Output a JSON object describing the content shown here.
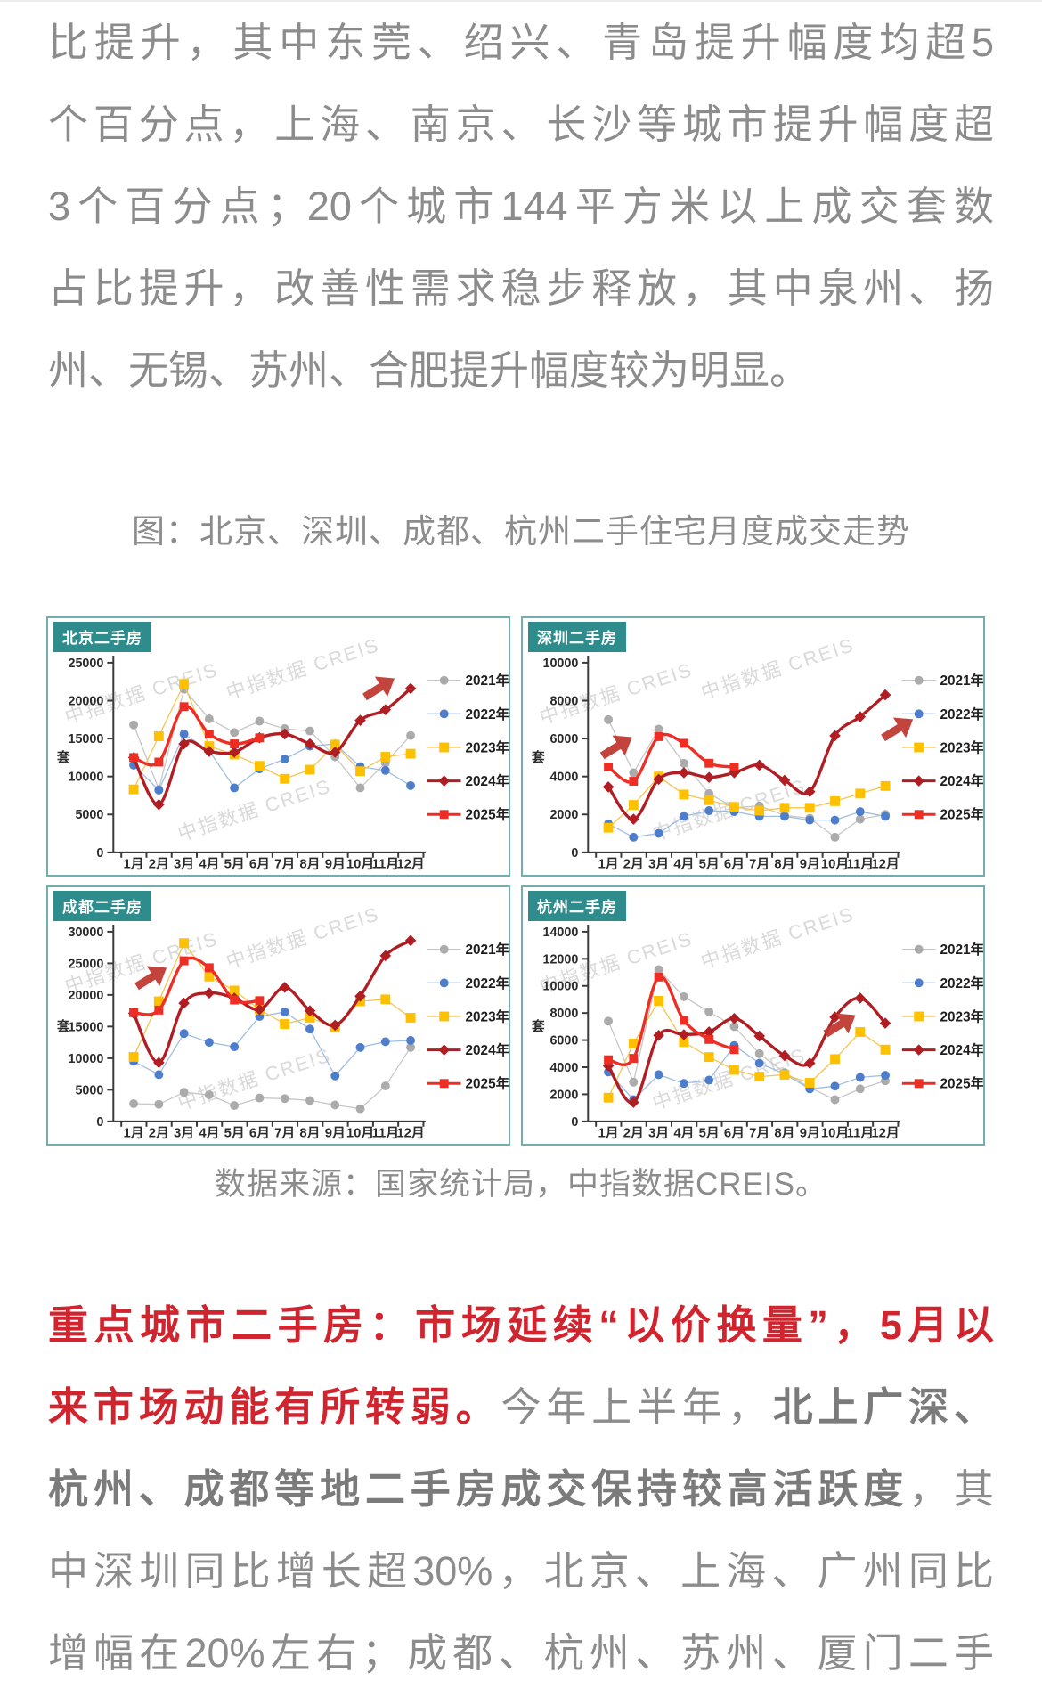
{
  "article": {
    "top_lines": [
      "比提升，其中东莞、绍兴、青岛提升幅度均超5",
      "个百分点，上海、南京、长沙等城市提升幅度超",
      "3个百分点；20个城市144平方米以上成交套数",
      "占比提升，改善性需求稳步释放，其中泉州、扬",
      "州、无锡、苏州、合肥提升幅度较为明显。"
    ],
    "bottom": {
      "l1": "重点城市二手房：市场延续“以价换量”，5月以",
      "l2a": "来市场动能有所转弱。",
      "l2b": "今年上半年，",
      "l2c": "北上广深、",
      "l3a": "杭州、成都等地二手房成交保持较高活跃度",
      "l3b": "，其",
      "l4": "中深圳同比增长超30%，北京、上海、广州同比",
      "l5": "增幅在20%左右；成都、杭州、苏州、厦门二手"
    }
  },
  "figure": {
    "caption": "图：北京、深圳、成都、杭州二手住宅月度成交走势",
    "source": "数据来源：国家统计局，中指数据CREIS。",
    "watermark": "中指数据 CREIS",
    "unit": "套"
  },
  "colors": {
    "body_gray": "#8c8c8c",
    "heading_red": "#d0242f",
    "panel_border": "#6fafaf",
    "panel_title_bg": "#2e8c8c",
    "arrow": "#bf3a33",
    "series_2021": "#ababab",
    "series_2022": "#4e7ecb",
    "series_2023": "#ffc000",
    "series_2024": "#b01e23",
    "series_2025": "#ee2e24"
  },
  "chart_styles": {
    "2021年": {
      "line": "#c7c7c7",
      "marker": "#ababab",
      "shape": "circle",
      "w": 1.3,
      "smooth": false
    },
    "2022年": {
      "line": "#9fbde2",
      "marker": "#4e7ecb",
      "shape": "circle",
      "w": 1.3,
      "smooth": false
    },
    "2023年": {
      "line": "#f6c44f",
      "marker": "#ffc000",
      "shape": "square",
      "w": 1.3,
      "smooth": false
    },
    "2024年": {
      "line": "#b01e23",
      "marker": "#b01e23",
      "shape": "diamond",
      "w": 3.4,
      "smooth": true
    },
    "2025年": {
      "line": "#ee2e24",
      "marker": "#ee2e24",
      "shape": "square",
      "w": 3.4,
      "smooth": true
    }
  },
  "chart_data": [
    {
      "type": "line",
      "title": "北京二手房",
      "ylabel": "套",
      "categories": [
        "1月",
        "2月",
        "3月",
        "4月",
        "5月",
        "6月",
        "7月",
        "8月",
        "9月",
        "10月",
        "11月",
        "12月"
      ],
      "ylim": [
        0,
        25000
      ],
      "ytick": 5000,
      "legend_position": "right",
      "grid": false,
      "series": [
        {
          "name": "2021年",
          "values": [
            16800,
            8300,
            21500,
            17600,
            15800,
            17300,
            16300,
            16000,
            12600,
            8500,
            11800,
            15400
          ]
        },
        {
          "name": "2022年",
          "values": [
            11500,
            8200,
            15600,
            13400,
            8500,
            11000,
            12300,
            14000,
            14300,
            11300,
            10800,
            8800
          ]
        },
        {
          "name": "2023年",
          "values": [
            8300,
            15300,
            22200,
            14000,
            12900,
            11400,
            9700,
            10900,
            14200,
            10700,
            12600,
            13000
          ]
        },
        {
          "name": "2024年",
          "values": [
            12500,
            6300,
            14300,
            13300,
            13200,
            15100,
            15600,
            14300,
            13200,
            17400,
            18800,
            21600
          ]
        },
        {
          "name": "2025年",
          "values": [
            12500,
            11900,
            19200,
            15600,
            14300,
            15100,
            null,
            null,
            null,
            null,
            null,
            null
          ]
        }
      ],
      "arrows": [
        {
          "x": 0.72,
          "y": 0.27,
          "rot": -32
        }
      ]
    },
    {
      "type": "line",
      "title": "深圳二手房",
      "ylabel": "套",
      "categories": [
        "1月",
        "2月",
        "3月",
        "4月",
        "5月",
        "6月",
        "7月",
        "8月",
        "9月",
        "10月",
        "11月",
        "12月"
      ],
      "ylim": [
        0,
        10000
      ],
      "ytick": 2000,
      "legend_position": "right",
      "grid": false,
      "series": [
        {
          "name": "2021年",
          "values": [
            7000,
            4200,
            6500,
            4700,
            3100,
            2350,
            2450,
            1950,
            1800,
            800,
            1750,
            2000
          ]
        },
        {
          "name": "2022年",
          "values": [
            1500,
            800,
            1000,
            1900,
            2200,
            2150,
            1900,
            1900,
            1700,
            1700,
            2150,
            1900
          ]
        },
        {
          "name": "2023年",
          "values": [
            1300,
            2500,
            4000,
            3050,
            2750,
            2400,
            2200,
            2350,
            2350,
            2700,
            3100,
            3500
          ]
        },
        {
          "name": "2024年",
          "values": [
            3450,
            1750,
            3850,
            4200,
            3950,
            4200,
            4600,
            3800,
            3200,
            6150,
            7150,
            8300
          ]
        },
        {
          "name": "2025年",
          "values": [
            4500,
            3750,
            6100,
            5750,
            4700,
            4500,
            null,
            null,
            null,
            null,
            null,
            null
          ]
        }
      ],
      "arrows": [
        {
          "x": 0.205,
          "y": 0.5,
          "rot": -32
        },
        {
          "x": 0.815,
          "y": 0.43,
          "rot": -32
        }
      ]
    },
    {
      "type": "line",
      "title": "成都二手房",
      "ylabel": "套",
      "categories": [
        "1月",
        "2月",
        "3月",
        "4月",
        "5月",
        "6月",
        "7月",
        "8月",
        "9月",
        "10月",
        "11月",
        "12月"
      ],
      "ylim": [
        0,
        30000
      ],
      "ytick": 5000,
      "legend_position": "right",
      "grid": false,
      "series": [
        {
          "name": "2021年",
          "values": [
            2800,
            2700,
            4600,
            4200,
            2500,
            3700,
            3600,
            3300,
            2600,
            2000,
            5600,
            11700
          ]
        },
        {
          "name": "2022年",
          "values": [
            9500,
            7400,
            13900,
            12500,
            11800,
            16600,
            17300,
            14600,
            7200,
            11700,
            12600,
            12800
          ]
        },
        {
          "name": "2023年",
          "values": [
            10200,
            19000,
            28200,
            22900,
            20700,
            17700,
            15400,
            16400,
            14900,
            19000,
            19300,
            16400
          ]
        },
        {
          "name": "2024年",
          "values": [
            17100,
            9300,
            18700,
            20300,
            19500,
            17700,
            21200,
            17500,
            15200,
            19800,
            26200,
            28600
          ]
        },
        {
          "name": "2025年",
          "values": [
            17200,
            17600,
            25400,
            24300,
            19200,
            19100,
            null,
            null,
            null,
            null,
            null,
            null
          ]
        }
      ],
      "arrows": [
        {
          "x": 0.225,
          "y": 0.35,
          "rot": -32
        }
      ]
    },
    {
      "type": "line",
      "title": "杭州二手房",
      "ylabel": "套",
      "categories": [
        "1月",
        "2月",
        "3月",
        "4月",
        "5月",
        "6月",
        "7月",
        "8月",
        "9月",
        "10月",
        "11月",
        "12月"
      ],
      "ylim": [
        0,
        14000
      ],
      "ytick": 2000,
      "legend_position": "right",
      "grid": false,
      "series": [
        {
          "name": "2021年",
          "values": [
            7400,
            2900,
            11200,
            9200,
            8100,
            7000,
            5000,
            3600,
            2500,
            1600,
            2400,
            3000
          ]
        },
        {
          "name": "2022年",
          "values": [
            3650,
            1600,
            3450,
            2800,
            3050,
            5600,
            4300,
            3500,
            2400,
            2600,
            3250,
            3400
          ]
        },
        {
          "name": "2023年",
          "values": [
            1750,
            5750,
            8900,
            5850,
            4750,
            3800,
            3300,
            3450,
            2850,
            4600,
            6600,
            5300
          ]
        },
        {
          "name": "2024年",
          "values": [
            4100,
            1400,
            6350,
            6400,
            6600,
            7600,
            6300,
            4850,
            4300,
            7700,
            9100,
            7250
          ]
        },
        {
          "name": "2025年",
          "values": [
            4550,
            4650,
            10650,
            7450,
            6050,
            5300,
            null,
            null,
            null,
            null,
            null,
            null
          ]
        }
      ],
      "arrows": [
        {
          "x": 0.69,
          "y": 0.535,
          "rot": -32
        }
      ]
    }
  ]
}
